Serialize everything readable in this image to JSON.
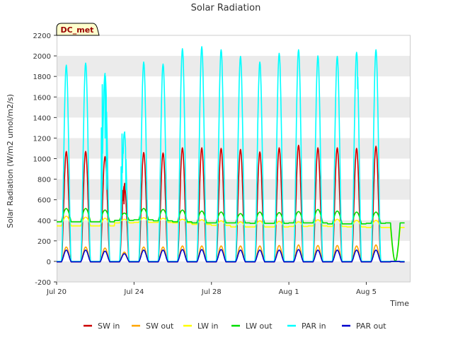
{
  "chart_data": {
    "type": "line",
    "title": "Solar Radiation",
    "ylabel": "Solar Radiation (W/m2 umol/m2/s)",
    "xlabel": "Time",
    "badge": "DC_met",
    "ylim": [
      -200,
      2200
    ],
    "xlim": [
      "2024-07-20",
      "2024-08-07T06:00"
    ],
    "yticks": [
      -200,
      0,
      200,
      400,
      600,
      800,
      1000,
      1200,
      1400,
      1600,
      1800,
      2000,
      2200
    ],
    "xticks": [
      {
        "value": "2024-07-20",
        "label": "Jul 20"
      },
      {
        "value": "2024-07-24",
        "label": "Jul 24"
      },
      {
        "value": "2024-07-28",
        "label": "Jul 28"
      },
      {
        "value": "2024-08-01",
        "label": "Aug 1"
      },
      {
        "value": "2024-08-05",
        "label": "Aug 5"
      }
    ],
    "grid": "horizontal bands",
    "legend_position": "bottom",
    "days": [
      "2024-07-20",
      "2024-07-21",
      "2024-07-22",
      "2024-07-23",
      "2024-07-24",
      "2024-07-25",
      "2024-07-26",
      "2024-07-27",
      "2024-07-28",
      "2024-07-29",
      "2024-07-30",
      "2024-07-31",
      "2024-08-01",
      "2024-08-02",
      "2024-08-03",
      "2024-08-04",
      "2024-08-05",
      "2024-08-06"
    ],
    "series": [
      {
        "name": "SW in",
        "color": "#cc0000",
        "kind": "peak",
        "night": -5,
        "daily_peak": [
          1070,
          1070,
          1020,
          740,
          1060,
          1055,
          1105,
          1105,
          1100,
          1090,
          1065,
          1105,
          1130,
          1105,
          1105,
          1100,
          1120,
          0
        ]
      },
      {
        "name": "SW out",
        "color": "#ffa500",
        "kind": "peak",
        "night": 0,
        "daily_peak": [
          140,
          140,
          130,
          90,
          140,
          140,
          150,
          150,
          150,
          150,
          150,
          155,
          160,
          155,
          155,
          150,
          160,
          0
        ]
      },
      {
        "name": "LW in",
        "color": "#ffff00",
        "kind": "diurnal",
        "night_level": [
          345,
          345,
          345,
          375,
          380,
          380,
          375,
          360,
          350,
          335,
          335,
          335,
          340,
          345,
          340,
          335,
          330,
          330
        ],
        "daily_peak": [
          440,
          430,
          420,
          410,
          425,
          420,
          410,
          405,
          395,
          385,
          395,
          390,
          385,
          405,
          410,
          400,
          400,
          0
        ]
      },
      {
        "name": "LW out",
        "color": "#00dd00",
        "kind": "diurnal",
        "night_level": [
          385,
          385,
          385,
          400,
          405,
          395,
          385,
          375,
          375,
          375,
          370,
          370,
          375,
          375,
          365,
          365,
          370,
          375
        ],
        "daily_peak": [
          515,
          515,
          500,
          470,
          515,
          505,
          500,
          490,
          480,
          465,
          480,
          475,
          485,
          505,
          490,
          480,
          480,
          0
        ]
      },
      {
        "name": "PAR in",
        "color": "#00ffff",
        "kind": "peak",
        "night": 0,
        "daily_peak": [
          1910,
          1930,
          1830,
          1250,
          1940,
          1920,
          2070,
          2090,
          2060,
          1995,
          1940,
          2025,
          2060,
          2000,
          1995,
          2035,
          2060,
          0
        ]
      },
      {
        "name": "PAR out",
        "color": "#0000cc",
        "kind": "peak",
        "night": -5,
        "daily_peak": [
          110,
          110,
          100,
          75,
          110,
          110,
          115,
          115,
          115,
          110,
          110,
          110,
          115,
          110,
          110,
          110,
          110,
          0
        ]
      }
    ]
  }
}
